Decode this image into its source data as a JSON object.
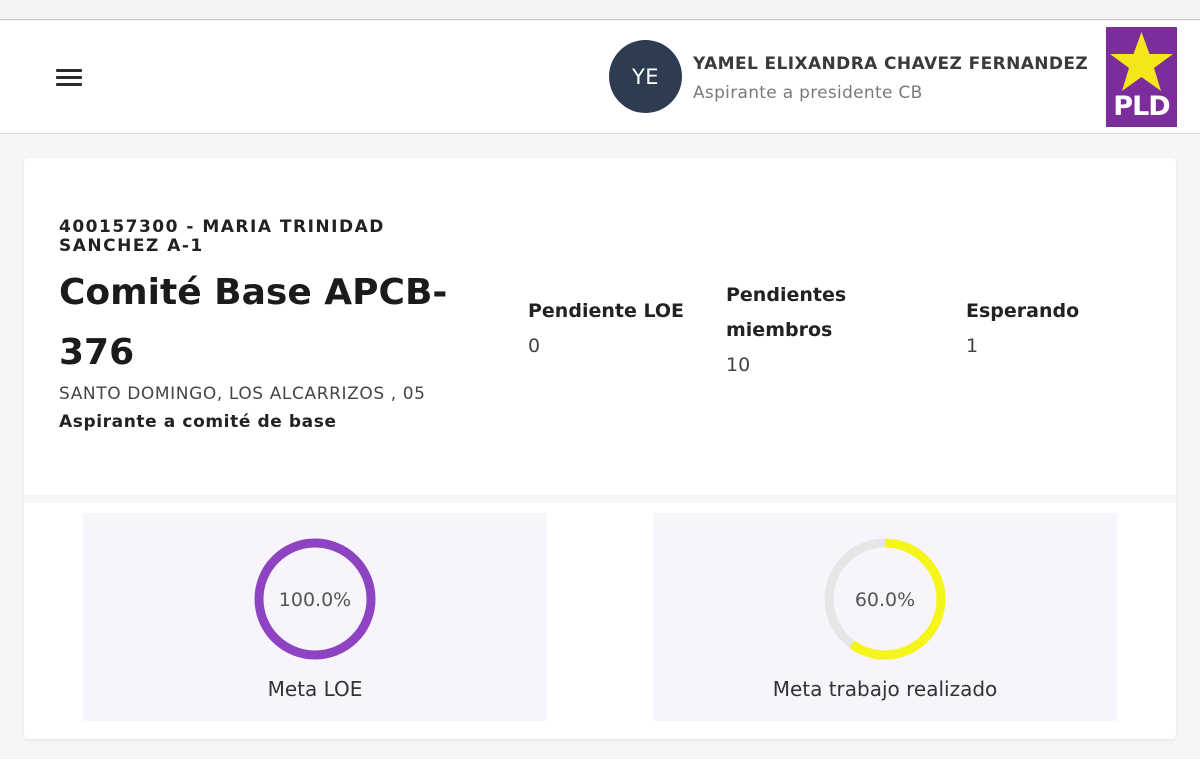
{
  "header": {
    "avatar_initials": "YE",
    "user_name": "YAMEL ELIXANDRA CHAVEZ FERNANDEZ",
    "user_role": "Aspirante a presidente CB",
    "logo_text": "PLD",
    "logo_color": "#7b2d9c",
    "logo_star_color": "#f5e61c"
  },
  "committee": {
    "code": "400157300 - MARIA TRINIDAD SANCHEZ A-1",
    "title": "Comité Base APCB-376",
    "location": "SANTO DOMINGO, LOS ALCARRIZOS , 05",
    "subtitle": "Aspirante a comité de base"
  },
  "stats": [
    {
      "label": "Pendiente LOE",
      "value": "0"
    },
    {
      "label": "Pendientes miembros",
      "value": "10"
    },
    {
      "label": "Esperando",
      "value": "1"
    }
  ],
  "gauges": [
    {
      "label": "Meta LOE",
      "percent_text": "100.0%",
      "fraction": 1.0,
      "color": "#8e44c2"
    },
    {
      "label": "Meta trabajo realizado",
      "percent_text": "60.0%",
      "fraction": 0.6,
      "color": "#f5f51a"
    }
  ]
}
